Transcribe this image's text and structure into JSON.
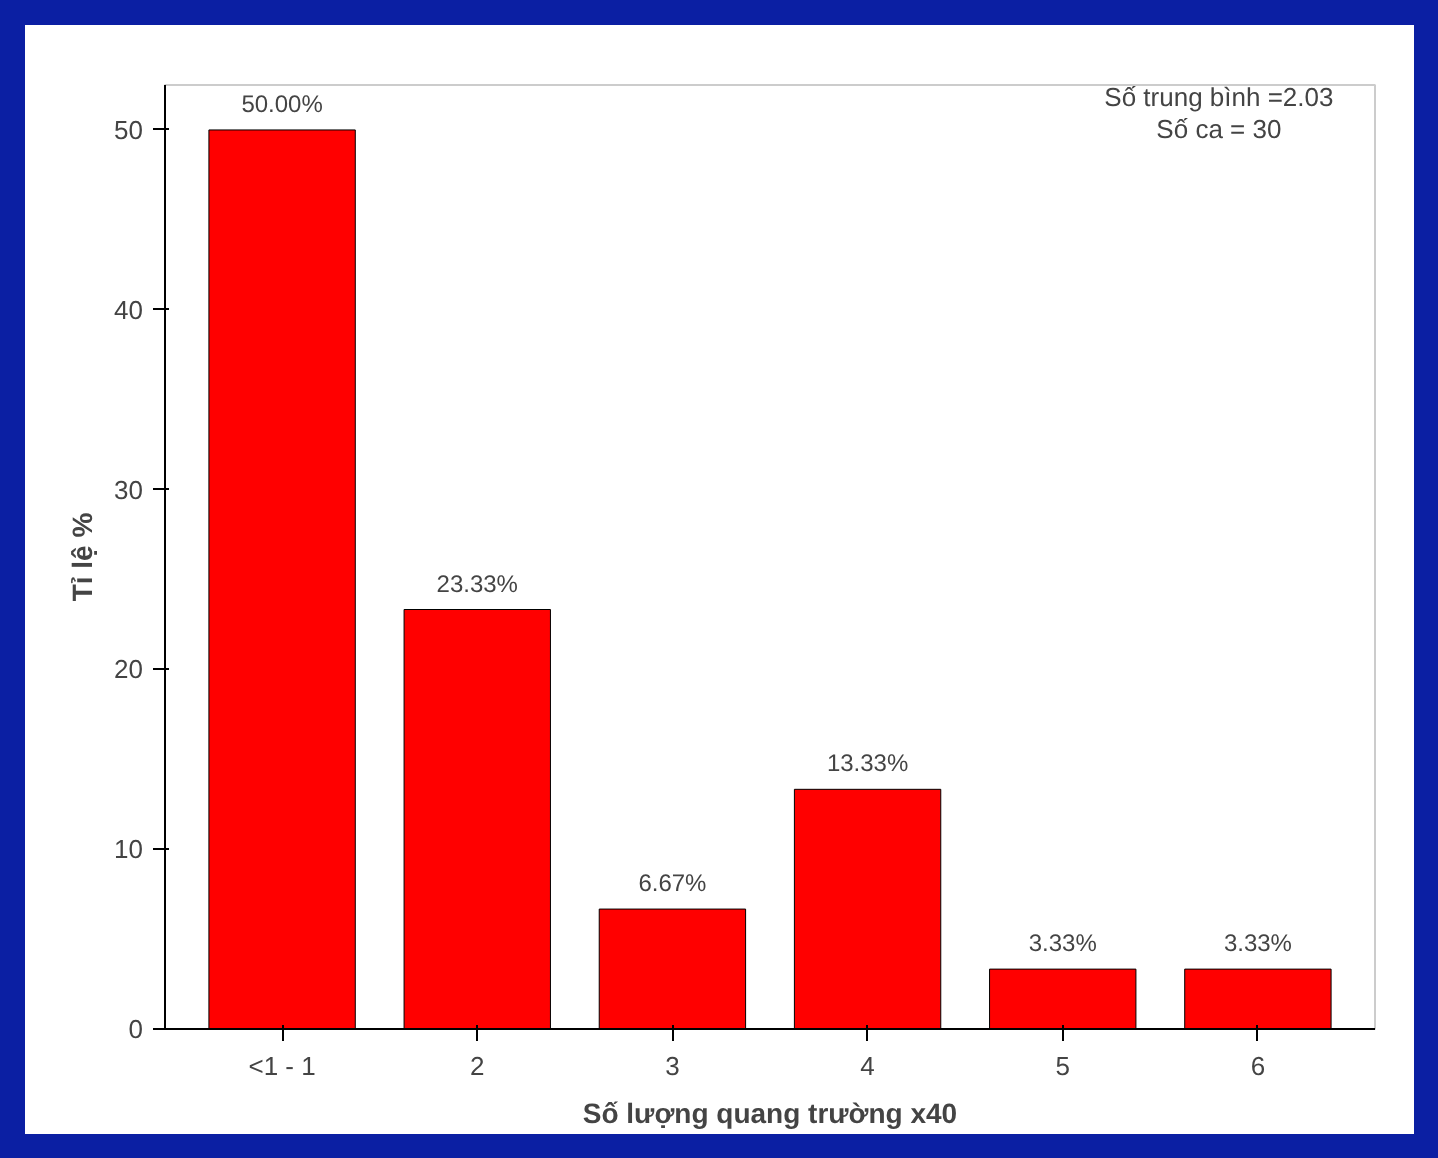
{
  "chart_data": {
    "type": "bar",
    "xlabel": "Số lượng quang trường x40",
    "ylabel": "Tỉ lệ %",
    "categories": [
      "<1 - 1",
      "2",
      "3",
      "4",
      "5",
      "6"
    ],
    "values": [
      50,
      23.33,
      6.67,
      13.33,
      3.33,
      3.33
    ],
    "value_labels": [
      "50.00%",
      "23.33%",
      "6.67%",
      "13.33%",
      "3.33%",
      "3.33%"
    ],
    "color": "#ff0000",
    "ylim": [
      0,
      52.5
    ],
    "yticks": [
      0,
      10,
      20,
      30,
      40,
      50
    ],
    "grid": false,
    "annotations": [
      "Số trung bình =2.03",
      "Số ca = 30"
    ]
  }
}
